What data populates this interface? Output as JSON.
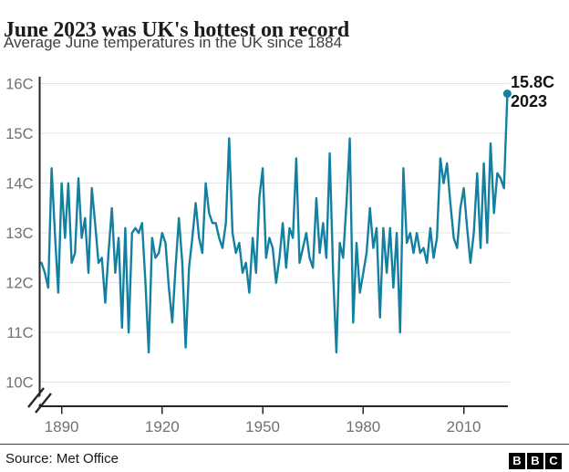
{
  "header": {
    "title": "June 2023 was UK's hottest on record",
    "subtitle": "Average June temperatures in the UK since 1884"
  },
  "annotation": {
    "value": "15.8C",
    "year": "2023"
  },
  "footer": {
    "source": "Source: Met Office",
    "logo_letters": [
      "B",
      "B",
      "C"
    ]
  },
  "colors": {
    "line": "#1380a1",
    "axis": "#262626",
    "grid": "#e4e4e4",
    "tick_label": "#717173",
    "annotation_text": "#141414",
    "background": "#ffffff"
  },
  "chart_data": {
    "type": "line",
    "title": "June 2023 was UK's hottest on record",
    "subtitle": "Average June temperatures in the UK since 1884",
    "xlabel": "",
    "ylabel": "",
    "x_start": 1884,
    "x_end": 2023,
    "x_ticks": [
      1890,
      1920,
      1950,
      1980,
      2010
    ],
    "y_ticks": [
      16,
      15,
      14,
      13,
      12,
      11,
      10
    ],
    "y_tick_labels": [
      "16C",
      "15C",
      "14C",
      "13C",
      "12C",
      "11C",
      "10C"
    ],
    "ylim": [
      10,
      16
    ],
    "axis_break_bottom": true,
    "grid": "horizontal",
    "legend_position": "none",
    "series": [
      {
        "name": "Average June temperature (C)",
        "values": [
          12.4,
          12.2,
          11.9,
          14.3,
          13.0,
          11.8,
          14.0,
          12.9,
          14.0,
          12.4,
          12.6,
          14.1,
          12.9,
          13.3,
          12.2,
          13.9,
          13.2,
          12.4,
          12.5,
          11.6,
          12.6,
          13.5,
          12.2,
          12.9,
          11.1,
          13.1,
          11.0,
          13.0,
          13.1,
          13.0,
          13.2,
          12.0,
          10.6,
          12.9,
          12.5,
          12.6,
          13.0,
          12.8,
          11.9,
          11.2,
          12.3,
          13.3,
          12.4,
          10.7,
          12.3,
          12.9,
          13.6,
          12.9,
          12.6,
          14.0,
          13.4,
          13.2,
          13.2,
          12.9,
          12.7,
          13.2,
          14.9,
          13.0,
          12.6,
          12.8,
          12.2,
          12.4,
          11.8,
          12.9,
          12.2,
          13.7,
          14.3,
          12.5,
          12.9,
          12.7,
          12.0,
          12.5,
          13.2,
          12.3,
          13.1,
          12.9,
          14.5,
          12.4,
          12.7,
          13.0,
          12.5,
          12.3,
          13.7,
          12.6,
          13.2,
          12.5,
          14.6,
          12.2,
          10.6,
          12.8,
          12.5,
          13.6,
          14.9,
          11.2,
          12.8,
          11.8,
          12.2,
          12.6,
          13.5,
          12.7,
          13.1,
          11.3,
          13.1,
          12.2,
          13.1,
          11.9,
          13.0,
          11.0,
          14.3,
          12.8,
          13.0,
          12.6,
          13.0,
          12.6,
          12.7,
          12.4,
          13.1,
          12.5,
          12.9,
          14.5,
          14.0,
          14.4,
          13.6,
          12.9,
          12.7,
          13.5,
          13.9,
          13.1,
          12.4,
          13.0,
          14.2,
          12.7,
          14.4,
          12.8,
          14.8,
          13.4,
          14.2,
          14.1,
          13.9,
          15.8
        ]
      }
    ],
    "annotation": {
      "x": 2023,
      "y": 15.8,
      "label": "15.8C",
      "sublabel": "2023"
    }
  }
}
